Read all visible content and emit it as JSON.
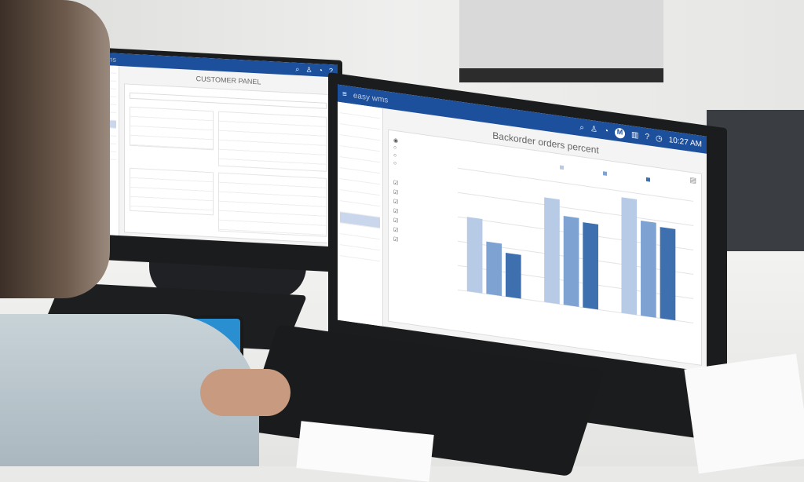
{
  "left_screen": {
    "app_logo": "easy wms",
    "title": "CUSTOMER PANEL",
    "header_icons": [
      "search-icon",
      "user-icon",
      "bell-icon",
      "help-icon"
    ]
  },
  "right_screen": {
    "app_logo": "easy wms",
    "time": "10:27 AM",
    "title": "Backorder orders percent",
    "header_icons": [
      "menu-icon",
      "search-icon",
      "user-icon",
      "bell-icon",
      "brand-icon",
      "chart-icon",
      "help-icon",
      "clock-icon"
    ],
    "accent_color": "#1c4f9c"
  },
  "chart_data": {
    "type": "bar",
    "categories": [
      "",
      "",
      ""
    ],
    "series": [
      {
        "color": "#b7cbe6",
        "values": [
          6.1,
          8.6,
          9.5
        ]
      },
      {
        "color": "#7ea3d3",
        "values": [
          4.3,
          7.3,
          7.8
        ]
      },
      {
        "color": "#3e6fae",
        "values": [
          3.6,
          7.0,
          7.5
        ]
      }
    ],
    "ylim": [
      0,
      10
    ],
    "grid": true,
    "legend": "top-right"
  }
}
